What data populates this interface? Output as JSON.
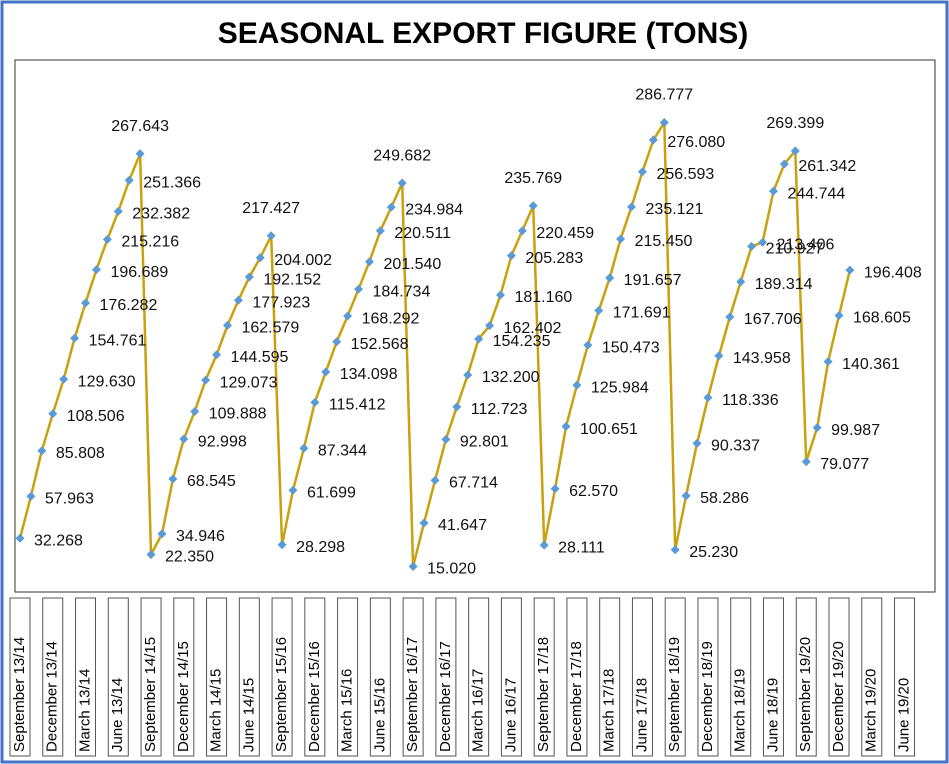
{
  "chart_data": {
    "type": "line",
    "title": "SEASONAL EXPORT FIGURE (TONS)",
    "categories": [
      "September 13/14",
      null,
      null,
      "December 13/14",
      null,
      null,
      "March 13/14",
      null,
      null,
      "June 13/14",
      null,
      null,
      "September 14/15",
      null,
      null,
      "December 14/15",
      null,
      null,
      "March 14/15",
      null,
      null,
      "June 14/15",
      null,
      null,
      "September 15/16",
      null,
      null,
      "December 15/16",
      null,
      null,
      "March 15/16",
      null,
      null,
      "June 15/16",
      null,
      null,
      "September 16/17",
      null,
      null,
      "December 16/17",
      null,
      null,
      "March 16/17",
      null,
      null,
      "June 16/17",
      null,
      null,
      "September 17/18",
      null,
      null,
      "December 17/18",
      null,
      null,
      "March 17/18",
      null,
      null,
      "June 17/18",
      null,
      null,
      "September 18/19",
      null,
      null,
      "December 18/19",
      null,
      null,
      "March 18/19",
      null,
      null,
      "June 18/19",
      null,
      null,
      "September 19/20",
      null,
      null,
      "December 19/20",
      null,
      null,
      "March 19/20",
      null,
      null,
      "June 19/20",
      null,
      null
    ],
    "values": [
      32.268,
      57.963,
      85.808,
      108.506,
      129.63,
      154.761,
      176.282,
      196.689,
      215.216,
      232.382,
      251.366,
      267.643,
      22.35,
      34.946,
      68.545,
      92.998,
      109.888,
      129.073,
      144.595,
      162.579,
      177.923,
      192.152,
      204.002,
      217.427,
      28.298,
      61.699,
      87.344,
      115.412,
      134.098,
      152.568,
      168.292,
      184.734,
      201.54,
      220.511,
      234.984,
      249.682,
      15.02,
      41.647,
      67.714,
      92.801,
      112.723,
      132.2,
      154.235,
      162.402,
      181.16,
      205.283,
      220.459,
      235.769,
      28.111,
      62.57,
      100.651,
      125.984,
      150.473,
      171.691,
      191.657,
      215.45,
      235.121,
      256.593,
      276.08,
      286.777,
      25.23,
      58.286,
      90.337,
      118.336,
      143.958,
      167.706,
      189.314,
      210.927,
      213.406,
      244.744,
      261.342,
      269.399,
      79.077,
      99.987,
      140.361,
      168.605,
      196.408,
      null,
      null,
      null,
      null,
      null,
      null,
      null
    ],
    "value_labels": [
      "32.268",
      "57.963",
      "85.808",
      "108.506",
      "129.630",
      "154.761",
      "176.282",
      "196.689",
      "215.216",
      "232.382",
      "251.366",
      "267.643",
      "22.350",
      "34.946",
      "68.545",
      "92.998",
      "109.888",
      "129.073",
      "144.595",
      "162.579",
      "177.923",
      "192.152",
      "204.002",
      "217.427",
      "28.298",
      "61.699",
      "87.344",
      "115.412",
      "134.098",
      "152.568",
      "168.292",
      "184.734",
      "201.540",
      "220.511",
      "234.984",
      "249.682",
      "15.020",
      "41.647",
      "67.714",
      "92.801",
      "112.723",
      "132.200",
      "154.235",
      "162.402",
      "181.160",
      "205.283",
      "220.459",
      "235.769",
      "28.111",
      "62.570",
      "100.651",
      "125.984",
      "150.473",
      "171.691",
      "191.657",
      "215.450",
      "235.121",
      "256.593",
      "276.080",
      "286.777",
      "25.230",
      "58.286",
      "90.337",
      "118.336",
      "143.958",
      "167.706",
      "189.314",
      "210.927",
      "213.406",
      "244.744",
      "261.342",
      "269.399",
      "79.077",
      "99.987",
      "140.361",
      "168.605",
      "196.408",
      null,
      null,
      null,
      null,
      null,
      null,
      null
    ],
    "color": "#c9a00e",
    "marker_color": "#5b9bd5",
    "ylim": [
      0,
      325
    ]
  }
}
